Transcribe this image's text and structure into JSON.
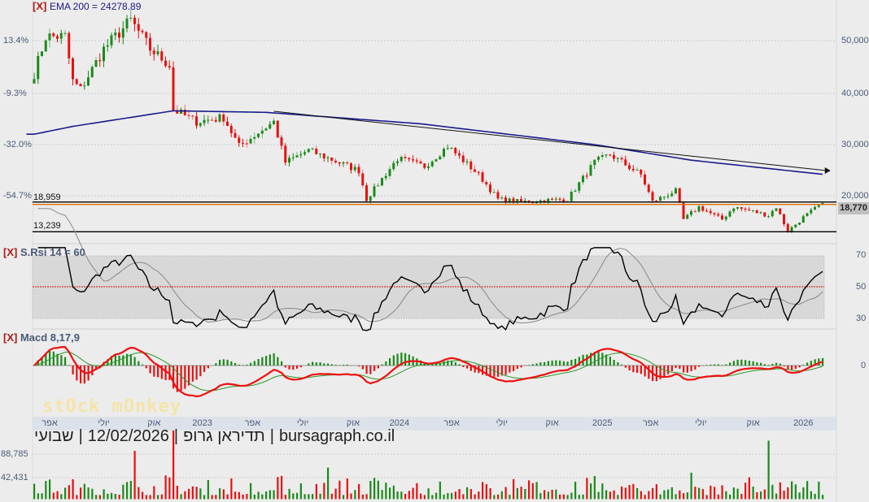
{
  "title_parts": [
    "שבועי",
    "|",
    "12/02/2026",
    "|",
    "תדיראן גרופ",
    "|",
    "bursagraph.co.il"
  ],
  "watermark": "stOck mOnkey",
  "close_marker": "[X]",
  "chart_data": [
    {
      "type": "candlestick",
      "name": "price",
      "indicator_label": "EMA 200 = 24278.89",
      "right_axis_ticks": [
        "50,000",
        "40,000",
        "30,000",
        "20,000"
      ],
      "right_axis_values": [
        50000,
        40000,
        30000,
        20000
      ],
      "left_axis_ticks": [
        "13.4%",
        "-9.3%",
        "-32.0%",
        "-54.7%"
      ],
      "last_price": "18,770",
      "last_value": 18770,
      "levels": [
        {
          "label": "18,959",
          "value": 18959,
          "color": "#000000"
        },
        {
          "label": "",
          "value": 18800,
          "color": "#e07000"
        },
        {
          "label": "13,239",
          "value": 13239,
          "color": "#000000"
        }
      ],
      "weeks": 205,
      "close_keypoints": [
        [
          0,
          43700
        ],
        [
          3,
          50800
        ],
        [
          8,
          50800
        ],
        [
          10,
          42200
        ],
        [
          12,
          40600
        ],
        [
          18,
          48400
        ],
        [
          25,
          53900
        ],
        [
          30,
          48400
        ],
        [
          35,
          45300
        ],
        [
          36,
          36700
        ],
        [
          42,
          34400
        ],
        [
          49,
          35200
        ],
        [
          53,
          29700
        ],
        [
          62,
          34400
        ],
        [
          65,
          26600
        ],
        [
          71,
          28900
        ],
        [
          84,
          25000
        ],
        [
          86,
          19500
        ],
        [
          94,
          27300
        ],
        [
          101,
          25800
        ],
        [
          107,
          29700
        ],
        [
          115,
          24200
        ],
        [
          120,
          19500
        ],
        [
          126,
          19000
        ],
        [
          138,
          19500
        ],
        [
          145,
          26600
        ],
        [
          149,
          28100
        ],
        [
          157,
          24200
        ],
        [
          160,
          19000
        ],
        [
          166,
          21100
        ],
        [
          168,
          15600
        ],
        [
          172,
          18000
        ],
        [
          178,
          15600
        ],
        [
          181,
          18000
        ],
        [
          190,
          16400
        ],
        [
          192,
          18000
        ],
        [
          195,
          13300
        ],
        [
          199,
          16000
        ],
        [
          204,
          18770
        ]
      ],
      "ema200_keypoints": [
        [
          0,
          32000
        ],
        [
          10,
          33500
        ],
        [
          36,
          36500
        ],
        [
          60,
          36200
        ],
        [
          100,
          34000
        ],
        [
          145,
          30000
        ],
        [
          170,
          27000
        ],
        [
          204,
          24279
        ]
      ],
      "trendline": [
        [
          62,
          36400
        ],
        [
          205,
          25000
        ]
      ],
      "colors": {
        "up": "#1a8a1a",
        "down": "#e81010",
        "ema": "#1a1a8c"
      }
    },
    {
      "type": "line",
      "name": "rsi",
      "indicator_label": "S.Rsi 14 = 60",
      "period": 14,
      "ylim": [
        30,
        70
      ],
      "right_axis_ticks": [
        "70",
        "50",
        "30"
      ],
      "right_axis_values": [
        70,
        50,
        30
      ]
    },
    {
      "type": "line+bar",
      "name": "macd",
      "indicator_label": "Macd 8,17,9",
      "params": [
        8,
        17,
        9
      ],
      "right_axis_ticks": [
        "0"
      ]
    },
    {
      "type": "bar",
      "name": "volume",
      "right_axis_ticks": [
        "88,785",
        "42,431"
      ],
      "right_axis_values": [
        88785,
        42431
      ],
      "spikes": [
        [
          36,
          135000
        ],
        [
          26,
          95000
        ],
        [
          190,
          115000
        ],
        [
          76,
          62000
        ],
        [
          170,
          52000
        ]
      ]
    }
  ],
  "x_axis": {
    "ticks": [
      "אפר",
      "יולי",
      "אוק",
      "2023",
      "אפר",
      "יולי",
      "אוק",
      "2024",
      "אפר",
      "יולי",
      "אוק",
      "2025",
      "אפר",
      "יולי",
      "אוק",
      "2026"
    ],
    "tick_weeks": [
      4,
      18,
      31,
      43.5,
      56.5,
      69.5,
      82.5,
      94.5,
      108,
      121,
      134,
      147,
      159.5,
      172.5,
      186,
      199
    ]
  }
}
